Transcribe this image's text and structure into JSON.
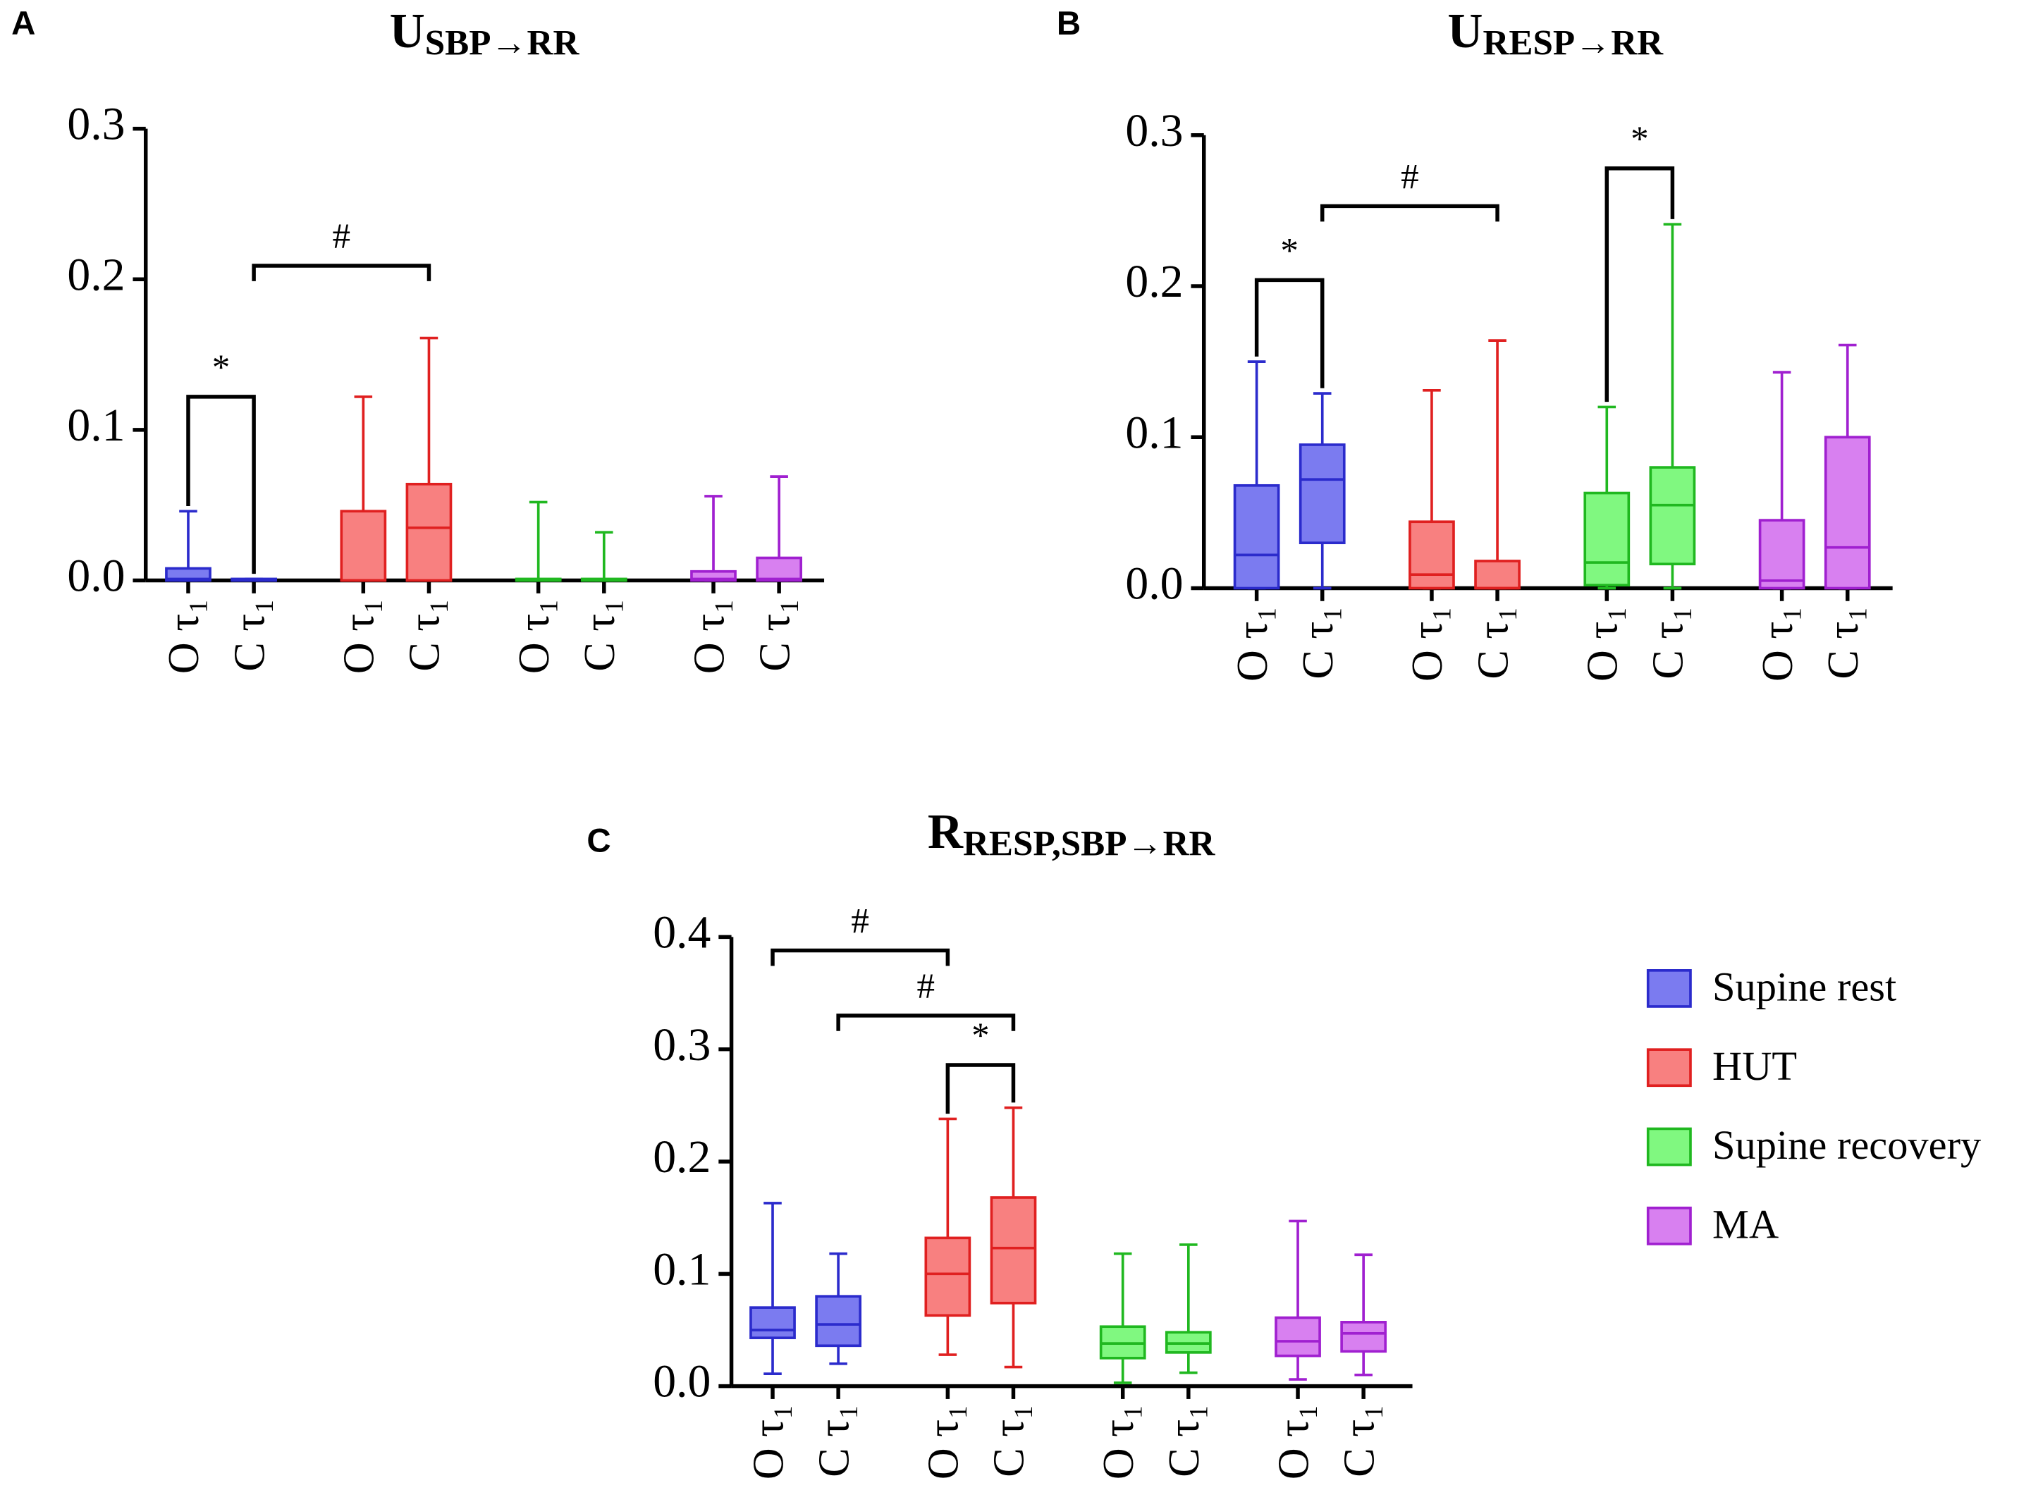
{
  "chart_data": [
    {
      "type": "box",
      "panel": "A",
      "title": "U",
      "title_subscript": "SBP→RR",
      "categories": [
        "O τ₁",
        "C τ₁",
        "O τ₁",
        "C τ₁",
        "O τ₁",
        "C τ₁",
        "O τ₁",
        "C τ₁"
      ],
      "ylim": [
        0,
        0.3
      ],
      "yticks": [
        {
          "value": 0,
          "label": "0.0"
        },
        0.1,
        0.2,
        0.3
      ],
      "series": [
        {
          "name": "Supine rest",
          "color": "#2b2bcc",
          "fill": "#7b7bf0",
          "values": [
            {
              "min": 0,
              "q1": 0,
              "median": 0.001,
              "q3": 0.008,
              "max": 0.046
            },
            {
              "min": 0,
              "q1": 0,
              "median": 0,
              "q3": 0.001,
              "max": 0.001
            }
          ]
        },
        {
          "name": "HUT",
          "color": "#e02020",
          "fill": "#f88080",
          "values": [
            {
              "min": 0,
              "q1": 0,
              "median": 0,
              "q3": 0.046,
              "max": 0.122
            },
            {
              "min": 0,
              "q1": 0,
              "median": 0.035,
              "q3": 0.064,
              "max": 0.161
            }
          ]
        },
        {
          "name": "Supine recovery",
          "color": "#20b820",
          "fill": "#80f880",
          "values": [
            {
              "min": 0,
              "q1": 0,
              "median": 0,
              "q3": 0.001,
              "max": 0.052
            },
            {
              "min": 0,
              "q1": 0,
              "median": 0,
              "q3": 0.001,
              "max": 0.032
            }
          ]
        },
        {
          "name": "MA",
          "color": "#a020d0",
          "fill": "#d880f0",
          "values": [
            {
              "min": 0,
              "q1": 0,
              "median": 0.001,
              "q3": 0.006,
              "max": 0.056
            },
            {
              "min": 0,
              "q1": 0,
              "median": 0.001,
              "q3": 0.015,
              "max": 0.069
            }
          ]
        }
      ],
      "annotations": [
        {
          "text": "*",
          "y": 0.122,
          "from": 0,
          "to": 1
        },
        {
          "text": "#",
          "y": 0.209,
          "from": 1,
          "to": 3
        }
      ]
    },
    {
      "type": "box",
      "panel": "B",
      "title": "U",
      "title_subscript": "RESP→RR",
      "categories": [
        "O τ₁",
        "C τ₁",
        "O τ₁",
        "C τ₁",
        "O τ₁",
        "C τ₁",
        "O τ₁",
        "C τ₁"
      ],
      "ylim": [
        0,
        0.3
      ],
      "yticks": [
        {
          "value": 0,
          "label": "0.0"
        },
        0.1,
        0.2,
        0.3
      ],
      "series": [
        {
          "name": "Supine rest",
          "color": "#2b2bcc",
          "fill": "#7b7bf0",
          "values": [
            {
              "min": 0,
              "q1": 0,
              "median": 0.022,
              "q3": 0.068,
              "max": 0.15
            },
            {
              "min": 0,
              "q1": 0.03,
              "median": 0.072,
              "q3": 0.095,
              "max": 0.129
            }
          ]
        },
        {
          "name": "HUT",
          "color": "#e02020",
          "fill": "#f88080",
          "values": [
            {
              "min": 0,
              "q1": 0,
              "median": 0.009,
              "q3": 0.044,
              "max": 0.131
            },
            {
              "min": 0,
              "q1": 0,
              "median": 0,
              "q3": 0.018,
              "max": 0.164
            }
          ]
        },
        {
          "name": "Supine recovery",
          "color": "#20b820",
          "fill": "#80f880",
          "values": [
            {
              "min": 0,
              "q1": 0.002,
              "median": 0.017,
              "q3": 0.063,
              "max": 0.12
            },
            {
              "min": 0,
              "q1": 0.016,
              "median": 0.055,
              "q3": 0.08,
              "max": 0.241
            }
          ]
        },
        {
          "name": "MA",
          "color": "#a020d0",
          "fill": "#d880f0",
          "values": [
            {
              "min": 0,
              "q1": 0,
              "median": 0.005,
              "q3": 0.045,
              "max": 0.143
            },
            {
              "min": 0,
              "q1": 0,
              "median": 0.027,
              "q3": 0.1,
              "max": 0.161
            }
          ]
        }
      ],
      "annotations": [
        {
          "text": "*",
          "y": 0.204,
          "from": 0,
          "to": 1
        },
        {
          "text": "#",
          "y": 0.253,
          "from": 1,
          "to": 3
        },
        {
          "text": "*",
          "y": 0.278,
          "from": 4,
          "to": 5
        }
      ]
    },
    {
      "type": "box",
      "panel": "C",
      "title": "R",
      "title_subscript": "RESP,SBP→RR",
      "categories": [
        "O τ₁",
        "C τ₁",
        "O τ₁",
        "C τ₁",
        "O τ₁",
        "C τ₁",
        "O τ₁",
        "C τ₁"
      ],
      "ylim": [
        0,
        0.4
      ],
      "yticks": [
        {
          "value": 0,
          "label": "0.0"
        },
        0.1,
        0.2,
        0.3,
        0.4
      ],
      "series": [
        {
          "name": "Supine rest",
          "color": "#2b2bcc",
          "fill": "#7b7bf0",
          "values": [
            {
              "min": 0.011,
              "q1": 0.043,
              "median": 0.05,
              "q3": 0.07,
              "max": 0.163
            },
            {
              "min": 0.02,
              "q1": 0.036,
              "median": 0.055,
              "q3": 0.08,
              "max": 0.118
            }
          ]
        },
        {
          "name": "HUT",
          "color": "#e02020",
          "fill": "#f88080",
          "values": [
            {
              "min": 0.028,
              "q1": 0.063,
              "median": 0.1,
              "q3": 0.132,
              "max": 0.238
            },
            {
              "min": 0.017,
              "q1": 0.074,
              "median": 0.123,
              "q3": 0.168,
              "max": 0.248
            }
          ]
        },
        {
          "name": "Supine recovery",
          "color": "#20b820",
          "fill": "#80f880",
          "values": [
            {
              "min": 0.003,
              "q1": 0.025,
              "median": 0.038,
              "q3": 0.053,
              "max": 0.118
            },
            {
              "min": 0.012,
              "q1": 0.03,
              "median": 0.038,
              "q3": 0.048,
              "max": 0.126
            }
          ]
        },
        {
          "name": "MA",
          "color": "#a020d0",
          "fill": "#d880f0",
          "values": [
            {
              "min": 0.006,
              "q1": 0.027,
              "median": 0.04,
              "q3": 0.061,
              "max": 0.147
            },
            {
              "min": 0.01,
              "q1": 0.031,
              "median": 0.047,
              "q3": 0.057,
              "max": 0.117
            }
          ]
        }
      ],
      "annotations": [
        {
          "text": "#",
          "y": 0.388,
          "from": 0,
          "to": 2
        },
        {
          "text": "#",
          "y": 0.33,
          "from": 1,
          "to": 3
        },
        {
          "text": "*",
          "y": 0.286,
          "from": 2,
          "to": 3
        }
      ]
    }
  ]
}
